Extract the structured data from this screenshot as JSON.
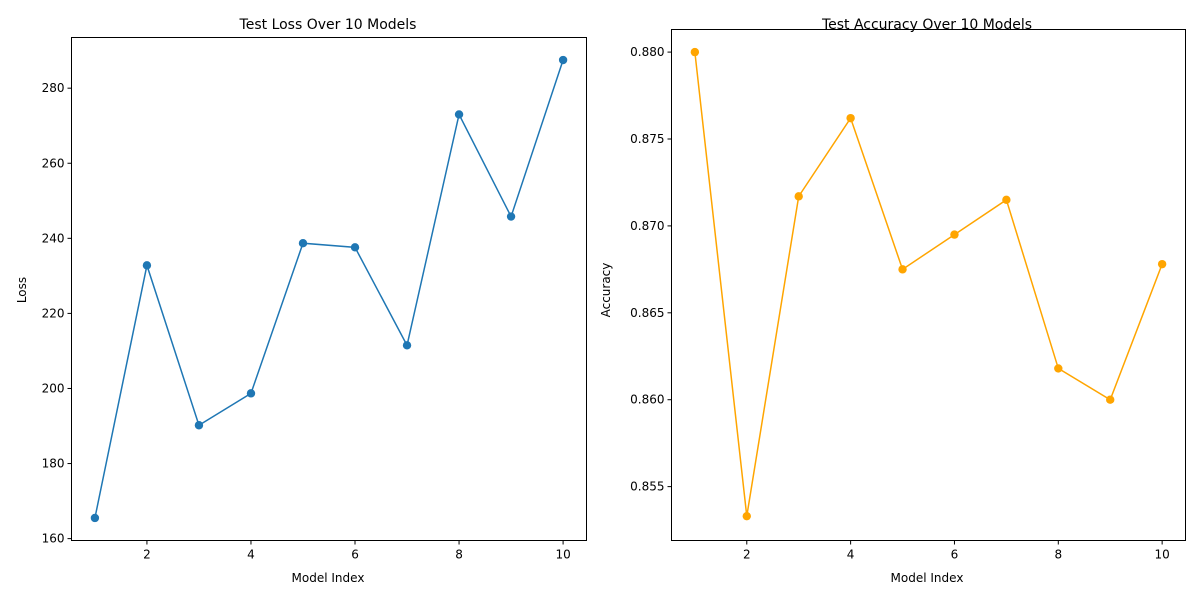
{
  "chart_data": [
    {
      "type": "line",
      "title": "Test Loss Over 10 Models",
      "xlabel": "Model Index",
      "ylabel": "Loss",
      "x": [
        1,
        2,
        3,
        4,
        5,
        6,
        7,
        8,
        9,
        10
      ],
      "xlim": [
        0.55,
        10.45
      ],
      "ylim": [
        159.5,
        293.5
      ],
      "xticks": [
        2,
        4,
        6,
        8,
        10
      ],
      "yticks": [
        160,
        180,
        200,
        220,
        240,
        260,
        280
      ],
      "ytick_decimals": 0,
      "grid": false,
      "series": [
        {
          "color": "#1f77b4",
          "marker": "circle",
          "values": [
            165.5,
            232.8,
            190.2,
            198.7,
            238.7,
            237.6,
            211.5,
            273.0,
            245.8,
            287.5
          ]
        }
      ]
    },
    {
      "type": "line",
      "title": "Test Accuracy Over 10 Models",
      "xlabel": "Model Index",
      "ylabel": "Accuracy",
      "x": [
        1,
        2,
        3,
        4,
        5,
        6,
        7,
        8,
        9,
        10
      ],
      "xlim": [
        0.55,
        10.45
      ],
      "ylim": [
        0.8519,
        0.8813
      ],
      "xticks": [
        2,
        4,
        6,
        8,
        10
      ],
      "yticks": [
        0.855,
        0.86,
        0.865,
        0.87,
        0.875,
        0.88
      ],
      "ytick_decimals": 3,
      "grid": false,
      "series": [
        {
          "color": "#ffa500",
          "marker": "circle",
          "values": [
            0.88,
            0.8533,
            0.8717,
            0.8762,
            0.8675,
            0.8695,
            0.8715,
            0.8618,
            0.86,
            0.8678
          ]
        }
      ]
    }
  ]
}
